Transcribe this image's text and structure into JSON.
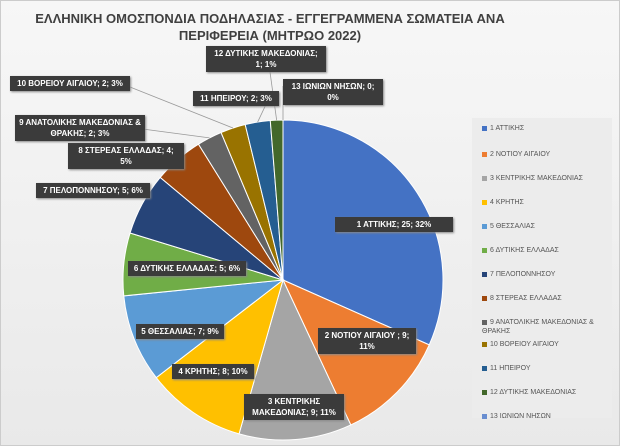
{
  "chart_data": {
    "type": "pie",
    "title": "ΕΛΛΗΝΙΚΗ ΟΜΟΣΠΟΝΔΙΑ ΠΟΔΗΛΑΣΙΑΣ - ΕΓΓΕΓΡΑΜΜΕΝΑ ΣΩΜΑΤΕΙΑ ΑΝΑ ΠΕΡΙΦΕΡΕΙΑ (ΜΗΤΡΩΟ 2022)",
    "legend_position": "right",
    "categories": [
      "1 ΑΤΤΙΚΗΣ",
      "2 ΝΟΤΙΟΥ ΑΙΓΑΙΟΥ",
      "3 ΚΕΝΤΡΙΚΗΣ ΜΑΚΕΔΟΝΙΑΣ",
      "4 ΚΡΗΤΗΣ",
      "5 ΘΕΣΣΑΛΙΑΣ",
      "6 ΔΥΤΙΚΗΣ ΕΛΛΑΔΑΣ",
      "7 ΠΕΛΟΠΟΝΝΗΣΟΥ",
      "8 ΣΤΕΡΕΑΣ ΕΛΛΑΔΑΣ",
      "9 ΑΝΑΤΟΛΙΚΗΣ ΜΑΚΕΔΟΝΙΑΣ & ΘΡΑΚΗΣ",
      "10 ΒΟΡΕΙΟΥ ΑΙΓΑΙΟΥ",
      "11 ΗΠΕΙΡΟΥ",
      "12 ΔΥΤΙΚΗΣ ΜΑΚΕΔΟΝΙΑΣ",
      "13 ΙΩΝΙΩΝ ΝΗΣΩΝ"
    ],
    "values": [
      25,
      9,
      9,
      8,
      7,
      5,
      5,
      4,
      2,
      2,
      2,
      1,
      0
    ],
    "data_labels": [
      "1 ΑΤΤΙΚΗΣ; 25; 32%",
      "2 ΝΟΤΙΟΥ ΑΙΓΑΙΟΥ ; 9; 11%",
      "3 ΚΕΝΤΡΙΚΗΣ ΜΑΚΕΔΟΝΙΑΣ; 9; 11%",
      "4 ΚΡΗΤΗΣ; 8; 10%",
      "5 ΘΕΣΣΑΛΙΑΣ; 7; 9%",
      "6 ΔΥΤΙΚΗΣ ΕΛΛΑΔΑΣ; 5; 6%",
      "7 ΠΕΛΟΠΟΝΝΗΣΟΥ; 5; 6%",
      "8 ΣΤΕΡΕΑΣ ΕΛΛΑΔΑΣ; 4; 5%",
      "9 ΑΝΑΤΟΛΙΚΗΣ ΜΑΚΕΔΟΝΙΑΣ & ΘΡΑΚΗΣ; 2; 3%",
      "10 ΒΟΡΕΙΟΥ ΑΙΓΑΙΟΥ; 2; 3%",
      "11 ΗΠΕΙΡΟΥ; 2; 3%",
      "12 ΔΥΤΙΚΗΣ ΜΑΚΕΔΟΝΙΑΣ; 1; 1%",
      "13 ΙΩΝΙΩΝ ΝΗΣΩΝ; 0; 0%"
    ],
    "colors": [
      "#4472C4",
      "#ED7D31",
      "#A5A5A5",
      "#FFC000",
      "#5B9BD5",
      "#70AD47",
      "#264478",
      "#9E480E",
      "#636363",
      "#997300",
      "#255E91",
      "#43682B",
      "#698ED0"
    ]
  }
}
